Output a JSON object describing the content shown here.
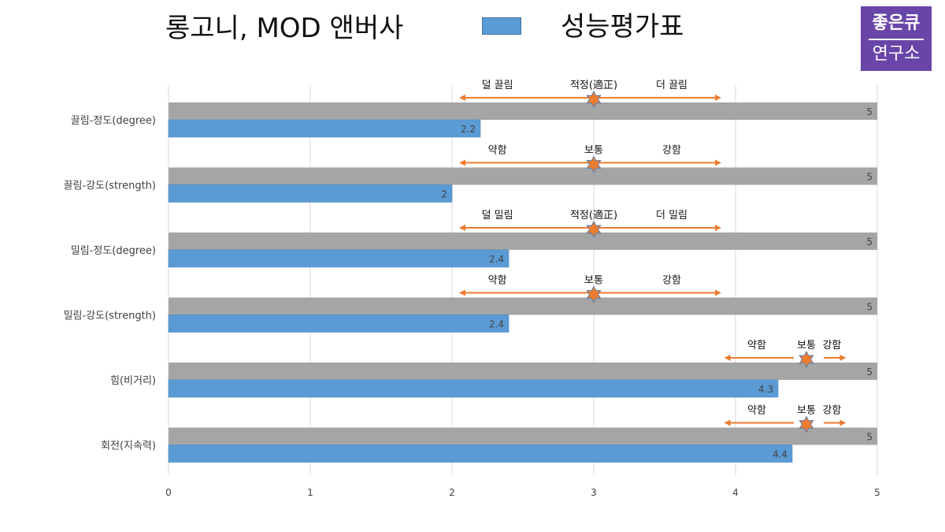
{
  "header": {
    "title": "롱고니, MOD 앤버사",
    "legend_label": "성능평가표"
  },
  "logo": {
    "line1": "좋은큐",
    "line2": "연구소"
  },
  "colors": {
    "max_bar": "#A5A5A5",
    "score_bar": "#5B9BD5",
    "arrow": "#ED7D31",
    "star_fill": "#ED7D31",
    "star_stroke": "#5B7FB0"
  },
  "chart_data": {
    "type": "bar",
    "orientation": "horizontal",
    "categories": [
      "끌림-정도(degree)",
      "끌림-강도(strength)",
      "밀림-정도(degree)",
      "밀림-강도(strength)",
      "힘(비거리)",
      "회전(지속력)"
    ],
    "series": [
      {
        "values": [
          5,
          5,
          5,
          5,
          5,
          5
        ]
      },
      {
        "name": "성능평가표",
        "values": [
          2.2,
          2,
          2.4,
          2.4,
          4.3,
          4.4
        ]
      }
    ],
    "xlim": [
      0,
      5
    ],
    "x_ticks": [
      "0",
      "1",
      "2",
      "3",
      "4",
      "5"
    ],
    "grid": true,
    "legend_position": "top",
    "annotations": [
      {
        "left": "덜 끌림",
        "center": "적정(適正)",
        "right": "더 끌림",
        "from": 2.05,
        "to": 3.9,
        "star": 3
      },
      {
        "left": "약함",
        "center": "보통",
        "right": "강함",
        "from": 2.05,
        "to": 3.9,
        "star": 3
      },
      {
        "left": "덜 밀림",
        "center": "적정(適正)",
        "right": "더 밀림",
        "from": 2.05,
        "to": 3.9,
        "star": 3
      },
      {
        "left": "약함",
        "center": "보통",
        "right": "강함",
        "from": 2.05,
        "to": 3.9,
        "star": 3
      },
      {
        "left": "약함",
        "center": "보통",
        "right": "강함",
        "from": 3.92,
        "to": 4.78,
        "star": 4.5
      },
      {
        "left": "약함",
        "center": "보통",
        "right": "강함",
        "from": 3.92,
        "to": 4.78,
        "star": 4.5
      }
    ]
  }
}
